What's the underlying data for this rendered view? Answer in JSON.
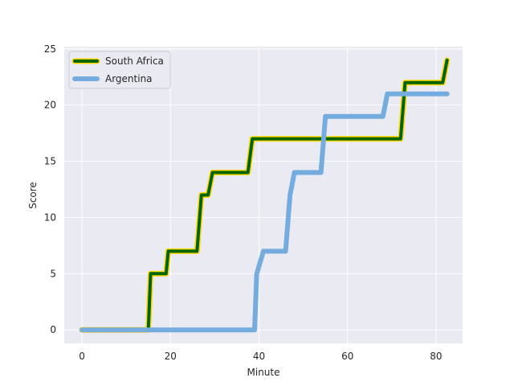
{
  "chart_data": {
    "type": "line",
    "xlabel": "Minute",
    "ylabel": "Score",
    "xlim": [
      -4,
      86
    ],
    "ylim": [
      -1.2,
      25.2
    ],
    "xticks": [
      0,
      20,
      40,
      60,
      80
    ],
    "yticks": [
      0,
      5,
      10,
      15,
      20,
      25
    ],
    "grid": true,
    "legend_position": "top-left",
    "background": "#eaeaf2",
    "series": [
      {
        "name": "South Africa",
        "color": "#006400",
        "edge_color": "#FFD700",
        "points": [
          [
            0,
            0
          ],
          [
            15,
            0
          ],
          [
            15.5,
            5
          ],
          [
            19,
            5
          ],
          [
            19.5,
            7
          ],
          [
            26,
            7
          ],
          [
            27,
            12
          ],
          [
            28.5,
            12
          ],
          [
            29.5,
            14
          ],
          [
            37.5,
            14
          ],
          [
            38.5,
            17
          ],
          [
            72,
            17
          ],
          [
            73,
            22
          ],
          [
            81.5,
            22
          ],
          [
            82.5,
            24
          ]
        ]
      },
      {
        "name": "Argentina",
        "color": "#74ACDF",
        "points": [
          [
            0,
            0
          ],
          [
            39,
            0
          ],
          [
            39.5,
            5
          ],
          [
            41,
            7
          ],
          [
            46,
            7
          ],
          [
            47,
            12
          ],
          [
            48,
            14
          ],
          [
            54,
            14
          ],
          [
            55,
            19
          ],
          [
            68,
            19
          ],
          [
            69,
            21
          ],
          [
            82.5,
            21
          ]
        ]
      }
    ]
  }
}
